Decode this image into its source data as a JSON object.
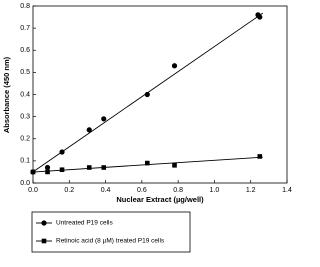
{
  "chart_data": {
    "type": "scatter",
    "x_label": "Nuclear Extract (µg/well)",
    "y_label": "Absorbance (450 nm)",
    "xlim": [
      0,
      1.4
    ],
    "xticks": [
      {
        "value": 0,
        "label": "0.0"
      },
      0.2,
      0.4,
      0.6,
      0.8,
      {
        "value": 1,
        "label": "1.0"
      },
      1.2,
      1.4
    ],
    "ylim": [
      0,
      0.8
    ],
    "yticks": [
      {
        "value": 0,
        "label": "0.0"
      },
      0.1,
      0.2,
      0.3,
      0.4,
      0.5,
      0.6,
      0.7,
      0.8
    ],
    "series": [
      {
        "name": "Untreated P19 cells",
        "color": "#000000",
        "marker": "circle",
        "x": [
          0,
          0.08,
          0.16,
          0.31,
          0.39,
          0.63,
          0.78,
          1.24,
          1.25
        ],
        "values": [
          0.05,
          0.07,
          0.14,
          0.24,
          0.29,
          0.4,
          0.53,
          0.76,
          0.75
        ]
      },
      {
        "name": "Retinoic acid (8 µM) treated P19 cells",
        "color": "#000000",
        "marker": "square",
        "x": [
          0,
          0.08,
          0.16,
          0.31,
          0.39,
          0.63,
          0.78,
          1.25
        ],
        "values": [
          0.05,
          0.05,
          0.06,
          0.07,
          0.07,
          0.09,
          0.08,
          0.12
        ]
      }
    ]
  }
}
